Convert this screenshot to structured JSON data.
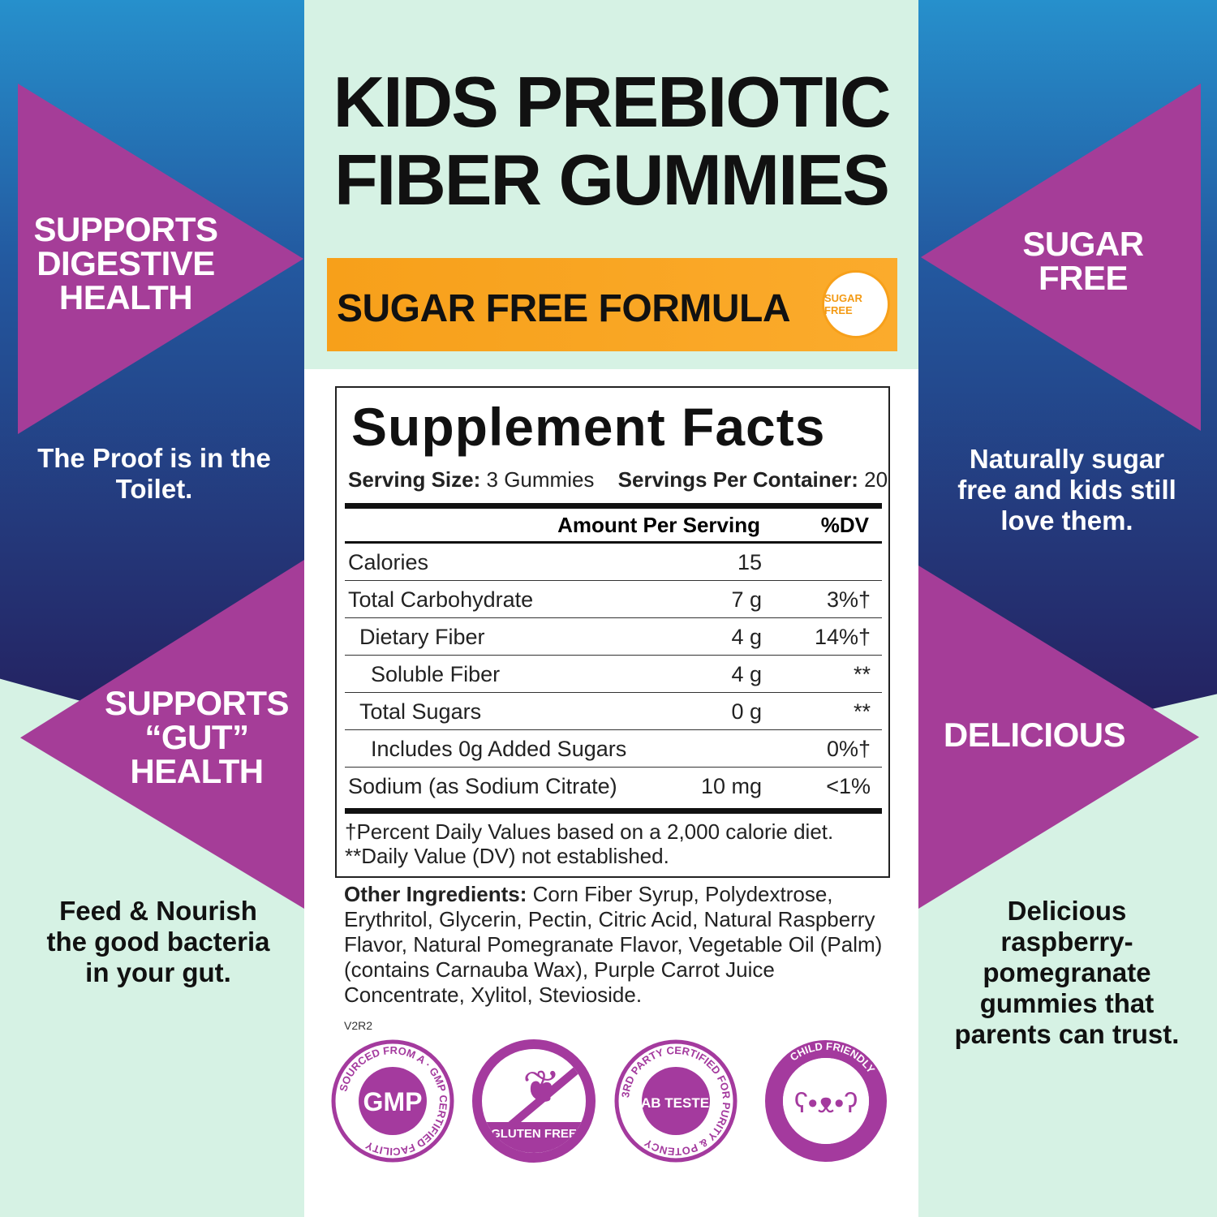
{
  "title": {
    "line1": "KIDS PREBIOTIC",
    "line2": "FIBER GUMMIES"
  },
  "banner": {
    "label": "SUGAR FREE FORMULA",
    "seal": "SUGAR FREE"
  },
  "left": {
    "h1": [
      "SUPPORTS",
      "DIGESTIVE",
      "HEALTH"
    ],
    "p1": [
      "The Proof is in the",
      "Toilet."
    ],
    "h2": [
      "SUPPORTS",
      "“GUT”",
      "HEALTH"
    ],
    "p2": [
      "Feed & Nourish",
      "the good bacteria",
      "in your gut."
    ]
  },
  "right": {
    "h1": [
      "SUGAR",
      "FREE"
    ],
    "p1": [
      "Naturally sugar",
      "free and kids still",
      "love them."
    ],
    "h2": "DELICIOUS",
    "p2": [
      "Delicious",
      "raspberry-",
      "pomegranate",
      "gummies that",
      "parents can trust."
    ]
  },
  "facts": {
    "heading": "Supplement Facts",
    "serving_label": "Serving Size:",
    "serving_value": "3 Gummies",
    "servings_label": "Servings Per Container:",
    "servings_value": "20",
    "col_amount": "Amount Per Serving",
    "col_dv": "%DV",
    "rows": [
      {
        "name": "Calories",
        "amount": "15",
        "dv": ""
      },
      {
        "name": "Total Carbohydrate",
        "amount": "7 g",
        "dv": "3%†"
      },
      {
        "name": "Dietary Fiber",
        "amount": "4 g",
        "dv": "14%†"
      },
      {
        "name": "Soluble Fiber",
        "amount": "4 g",
        "dv": "**"
      },
      {
        "name": "Total Sugars",
        "amount": "0 g",
        "dv": "**"
      },
      {
        "name": "Includes 0g Added Sugars",
        "amount": "",
        "dv": "0%†"
      },
      {
        "name": "Sodium (as Sodium Citrate)",
        "amount": "10 mg",
        "dv": "<1%"
      }
    ],
    "foot1": "†Percent Daily Values based on a 2,000 calorie diet.",
    "foot2": "**Daily Value (DV) not established."
  },
  "ingredients": {
    "label": "Other Ingredients:",
    "text": "Corn Fiber Syrup, Polydextrose, Erythritol, Glycerin, Pectin, Citric Acid, Natural Raspberry Flavor, Natural Pomegranate Flavor, Vegetable Oil (Palm) (contains Carnauba Wax), Purple Carrot Juice Concentrate, Xylitol, Stevioside."
  },
  "version": "V2R2",
  "badges": [
    {
      "center": "GMP",
      "ring": "SOURCED FROM A · GMP CERTIFIED FACILITY"
    },
    {
      "center": "",
      "ring": "GLUTEN FREE"
    },
    {
      "center": "LAB TESTED",
      "ring": "3RD PARTY CERTIFIED FOR PURITY & POTENCY"
    },
    {
      "center": "",
      "ring": "CHILD FRIENDLY"
    }
  ],
  "colors": {
    "purple": "#a53d98",
    "navy": "#241c5a",
    "blue": "#2690cc",
    "mint": "#d6f2e4",
    "orange": "#f7a21b"
  }
}
